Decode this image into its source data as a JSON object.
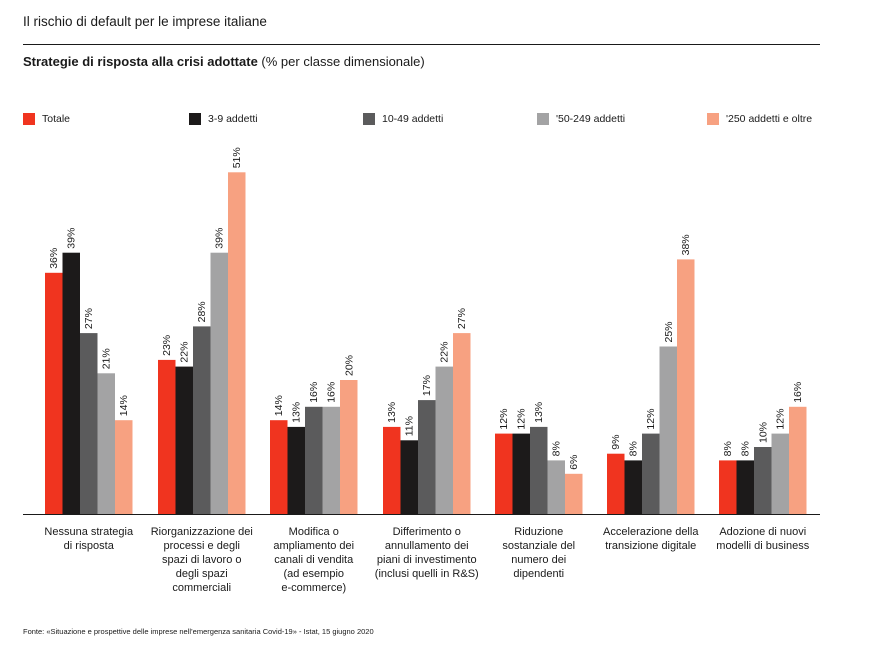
{
  "header": {
    "title": "Il rischio di default per le imprese italiane"
  },
  "subtitle": {
    "bold": "Strategie di risposta alla crisi adottate",
    "rest": " (% per classe dimensionale)"
  },
  "source": "Fonte: «Situazione e prospettive delle imprese nell’emergenza sanitaria Covid-19» - Istat, 15 giugno 2020",
  "chart_data": {
    "type": "bar",
    "title": "Strategie di risposta alla crisi adottate (% per classe dimensionale)",
    "categories": [
      [
        "Nessuna strategia",
        "di risposta"
      ],
      [
        "Riorganizzazione dei",
        "processi e degli",
        "spazi di lavoro o",
        "degli spazi",
        "commerciali"
      ],
      [
        "Modifica o",
        "ampliamento dei",
        "canali di vendita",
        "(ad esempio",
        "e-commerce)"
      ],
      [
        "Differimento o",
        "annullamento dei",
        "piani di investimento",
        "(inclusi quelli in R&S)"
      ],
      [
        "Riduzione",
        "sostanziale del",
        "numero dei",
        "dipendenti"
      ],
      [
        "Accelerazione della",
        "transizione digitale"
      ],
      [
        "Adozione di nuovi",
        "modelli di business"
      ]
    ],
    "series": [
      {
        "name": "Totale",
        "color": "#f0341f",
        "values": [
          36,
          23,
          14,
          13,
          12,
          9,
          8
        ]
      },
      {
        "name": "3-9 addetti",
        "color": "#1c1a1a",
        "values": [
          39,
          22,
          13,
          11,
          12,
          8,
          8
        ]
      },
      {
        "name": "10-49 addetti",
        "color": "#5b5b5c",
        "values": [
          27,
          28,
          16,
          17,
          13,
          12,
          10
        ]
      },
      {
        "name": "'50-249 addetti",
        "color": "#a3a3a4",
        "values": [
          21,
          39,
          16,
          22,
          8,
          25,
          12
        ]
      },
      {
        "name": "'250 addetti e oltre",
        "color": "#f7a181",
        "values": [
          14,
          51,
          20,
          27,
          6,
          38,
          16
        ]
      }
    ],
    "value_suffix": "%",
    "ylim": [
      0,
      51
    ],
    "grid": false,
    "legend_position": "top"
  }
}
